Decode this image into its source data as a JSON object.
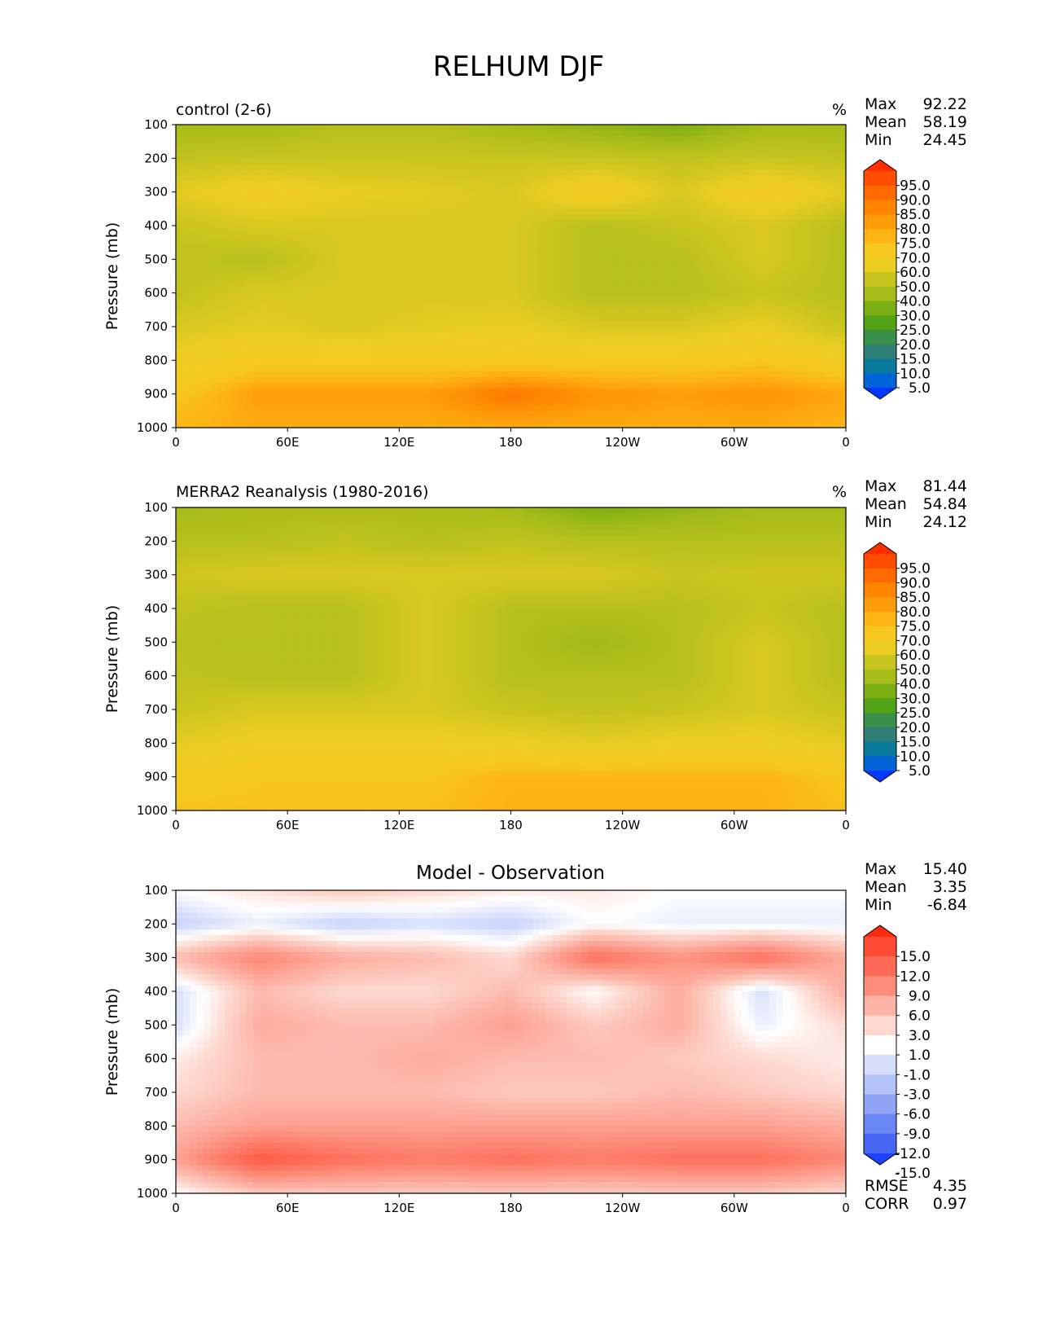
{
  "title": "RELHUM DJF",
  "panels": [
    {
      "id": "control",
      "title": "control (2-6)",
      "units": "%",
      "ylabel": "Pressure (mb)",
      "stats": [
        {
          "label": "Max",
          "value": "92.22"
        },
        {
          "label": "Mean",
          "value": "58.19"
        },
        {
          "label": "Min",
          "value": "24.45"
        }
      ],
      "colorbar": {
        "labels": [
          "95.0",
          "90.0",
          "85.0",
          "80.0",
          "75.0",
          "70.0",
          "60.0",
          "50.0",
          "40.0",
          "30.0",
          "25.0",
          "20.0",
          "15.0",
          "10.0",
          "5.0"
        ],
        "colors_top_to_bottom": [
          "#ff2d00",
          "#ff4d00",
          "#ff6a00",
          "#ff8400",
          "#ff9c0a",
          "#fdb514",
          "#f6c81e",
          "#ebcd22",
          "#c8c41e",
          "#a6bc19",
          "#7aae12",
          "#52a318",
          "#3a8f4a",
          "#307f76",
          "#087a9c",
          "#0063d6",
          "#0038ff"
        ]
      }
    },
    {
      "id": "observation",
      "title": "MERRA2 Reanalysis (1980-2016)",
      "units": "%",
      "ylabel": "Pressure (mb)",
      "stats": [
        {
          "label": "Max",
          "value": "81.44"
        },
        {
          "label": "Mean",
          "value": "54.84"
        },
        {
          "label": "Min",
          "value": "24.12"
        }
      ],
      "colorbar": {
        "labels": [
          "95.0",
          "90.0",
          "85.0",
          "80.0",
          "75.0",
          "70.0",
          "60.0",
          "50.0",
          "40.0",
          "30.0",
          "25.0",
          "20.0",
          "15.0",
          "10.0",
          "5.0"
        ],
        "colors_top_to_bottom": [
          "#ff2d00",
          "#ff4d00",
          "#ff6a00",
          "#ff8400",
          "#ff9c0a",
          "#fdb514",
          "#f6c81e",
          "#ebcd22",
          "#c8c41e",
          "#a6bc19",
          "#7aae12",
          "#52a318",
          "#3a8f4a",
          "#307f76",
          "#087a9c",
          "#0063d6",
          "#0038ff"
        ]
      }
    },
    {
      "id": "difference",
      "title": "Model - Observation",
      "units": "",
      "ylabel": "Pressure (mb)",
      "stats": [
        {
          "label": "Max",
          "value": "15.40"
        },
        {
          "label": "Mean",
          "value": "3.35"
        },
        {
          "label": "Min",
          "value": "-6.84"
        }
      ],
      "extra_stats": [
        {
          "label": "RMSE",
          "value": "4.35"
        },
        {
          "label": "CORR",
          "value": "0.97"
        }
      ],
      "colorbar": {
        "labels": [
          "15.0",
          "12.0",
          "9.0",
          "6.0",
          "3.0",
          "1.0",
          "-1.0",
          "-3.0",
          "-6.0",
          "-9.0",
          "-12.0",
          "-15.0"
        ],
        "colors_top_to_bottom": [
          "#ff2a10",
          "#ff4b33",
          "#fe6a55",
          "#fd8d7b",
          "#fdb3a6",
          "#fdd9d0",
          "#ffffff",
          "#d6defb",
          "#b3c2f8",
          "#8fa4f5",
          "#6a86f3",
          "#4866f5",
          "#1f42ff"
        ]
      }
    }
  ],
  "chart_data": {
    "type": "heatmap",
    "xlabel": "",
    "ylabel": "Pressure (mb)",
    "x_ticklabels": [
      "0",
      "60E",
      "120E",
      "180",
      "120W",
      "60W",
      "0"
    ],
    "x_tick_longitudes": [
      0,
      60,
      120,
      180,
      240,
      300,
      360
    ],
    "y_ticklabels": [
      "100",
      "200",
      "300",
      "400",
      "500",
      "600",
      "700",
      "800",
      "900",
      "1000"
    ],
    "y_tick_values": [
      100,
      200,
      300,
      400,
      500,
      600,
      700,
      800,
      900,
      1000
    ],
    "xlim": [
      0,
      360
    ],
    "ylim": [
      1000,
      100
    ],
    "y_inverted": true,
    "fields": {
      "control": {
        "levels": [
          100,
          200,
          300,
          400,
          500,
          600,
          700,
          800,
          900,
          1000
        ],
        "longitudes": [
          0,
          45,
          90,
          135,
          180,
          225,
          270,
          315,
          360
        ],
        "values": [
          [
            40,
            40,
            45,
            45,
            40,
            35,
            30,
            40,
            40
          ],
          [
            48,
            50,
            50,
            50,
            50,
            50,
            48,
            50,
            48
          ],
          [
            58,
            65,
            60,
            58,
            55,
            68,
            55,
            68,
            58
          ],
          [
            50,
            55,
            55,
            55,
            55,
            45,
            50,
            55,
            45
          ],
          [
            48,
            45,
            55,
            55,
            55,
            45,
            45,
            55,
            45
          ],
          [
            48,
            55,
            55,
            55,
            55,
            45,
            45,
            50,
            45
          ],
          [
            55,
            58,
            55,
            58,
            60,
            55,
            55,
            60,
            50
          ],
          [
            62,
            68,
            68,
            68,
            68,
            68,
            68,
            70,
            65
          ],
          [
            70,
            80,
            80,
            80,
            88,
            82,
            80,
            82,
            78
          ],
          [
            75,
            77,
            77,
            77,
            77,
            77,
            77,
            77,
            75
          ]
        ]
      },
      "observation": {
        "levels": [
          100,
          200,
          300,
          400,
          500,
          600,
          700,
          800,
          900,
          1000
        ],
        "longitudes": [
          0,
          45,
          90,
          135,
          180,
          225,
          270,
          315,
          360
        ],
        "values": [
          [
            40,
            42,
            42,
            42,
            40,
            30,
            35,
            40,
            40
          ],
          [
            45,
            45,
            48,
            45,
            48,
            45,
            45,
            45,
            45
          ],
          [
            52,
            55,
            55,
            55,
            55,
            55,
            50,
            52,
            52
          ],
          [
            48,
            45,
            45,
            55,
            45,
            45,
            45,
            50,
            45
          ],
          [
            45,
            45,
            45,
            55,
            45,
            38,
            45,
            55,
            45
          ],
          [
            48,
            45,
            45,
            55,
            45,
            45,
            45,
            55,
            45
          ],
          [
            50,
            55,
            55,
            55,
            50,
            48,
            50,
            55,
            50
          ],
          [
            58,
            62,
            62,
            62,
            62,
            58,
            62,
            62,
            58
          ],
          [
            66,
            70,
            70,
            70,
            75,
            75,
            75,
            75,
            70
          ],
          [
            72,
            72,
            72,
            72,
            76,
            76,
            76,
            76,
            72
          ]
        ]
      },
      "difference": {
        "levels": [
          100,
          200,
          300,
          400,
          500,
          600,
          700,
          800,
          900,
          1000
        ],
        "longitudes": [
          0,
          45,
          90,
          135,
          180,
          225,
          270,
          315,
          360
        ],
        "values": [
          [
            0,
            1.5,
            3,
            2,
            1,
            1,
            0,
            0,
            0
          ],
          [
            -3,
            -1,
            -3,
            -2,
            -3,
            0,
            -1,
            -1,
            -1
          ],
          [
            4,
            8,
            5,
            4,
            2,
            10,
            7,
            10,
            5
          ],
          [
            -2,
            4,
            2,
            2,
            4,
            0,
            5,
            -2,
            5
          ],
          [
            -2,
            5,
            4,
            4,
            6,
            3,
            5,
            -1,
            2
          ],
          [
            1,
            4,
            4,
            5,
            4,
            4,
            3,
            2,
            1
          ],
          [
            2,
            4,
            4,
            4,
            3,
            3,
            4,
            3,
            2
          ],
          [
            4,
            6,
            6,
            6,
            6,
            6,
            6,
            6,
            5
          ],
          [
            6,
            12,
            10,
            9,
            10,
            9,
            10,
            10,
            8
          ],
          [
            0,
            3,
            3,
            3,
            3,
            3,
            3,
            3,
            2
          ]
        ]
      }
    }
  }
}
